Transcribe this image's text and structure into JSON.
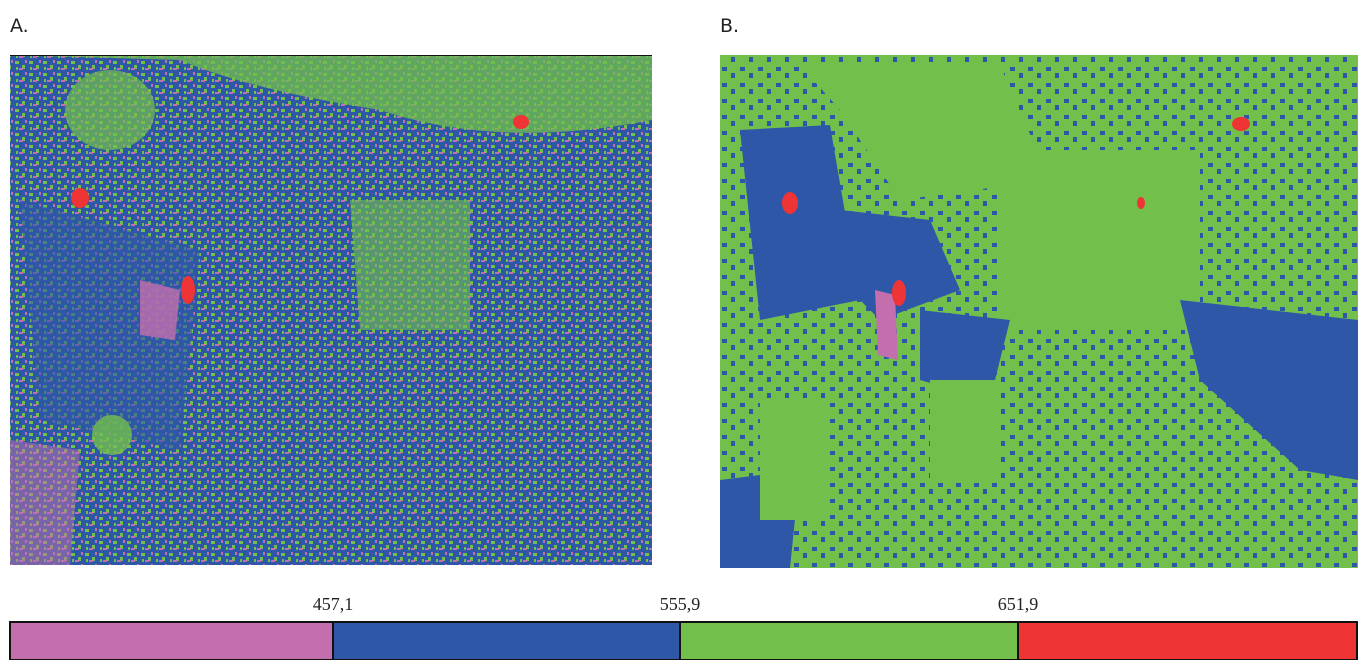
{
  "panels": [
    {
      "label": "A."
    },
    {
      "label": "B."
    }
  ],
  "legend": {
    "thresholds": [
      "457,1",
      "555,9",
      "651,9"
    ],
    "colors": [
      "#c36fae",
      "#2f57a8",
      "#72bf4b",
      "#ee3434"
    ]
  }
}
